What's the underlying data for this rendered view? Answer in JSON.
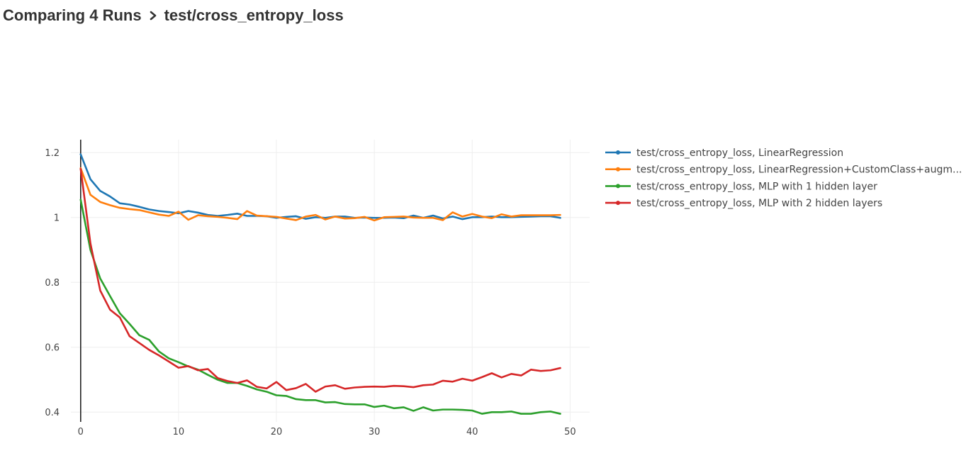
{
  "breadcrumb": {
    "parent": "Comparing 4 Runs",
    "current": "test/cross_entropy_loss"
  },
  "chart_data": {
    "type": "line",
    "title": "",
    "xlabel": "",
    "ylabel": "",
    "xlim": [
      -1,
      52
    ],
    "ylim": [
      0.37,
      1.24
    ],
    "x_ticks": [
      "0",
      "10",
      "20",
      "30",
      "40",
      "50"
    ],
    "y_ticks": [
      "0.4",
      "0.6",
      "0.8",
      "1",
      "1.2"
    ],
    "grid": true,
    "legend_position": "right",
    "x": [
      0,
      1,
      2,
      3,
      4,
      5,
      6,
      7,
      8,
      9,
      10,
      11,
      12,
      13,
      14,
      15,
      16,
      17,
      18,
      19,
      20,
      21,
      22,
      23,
      24,
      25,
      26,
      27,
      28,
      29,
      30,
      31,
      32,
      33,
      34,
      35,
      36,
      37,
      38,
      39,
      40,
      41,
      42,
      43,
      44,
      45,
      46,
      47,
      48,
      49
    ],
    "series": [
      {
        "name": "test/cross_entropy_loss, LinearRegression",
        "color": "#1f77b4",
        "values": [
          1.195,
          1.118,
          1.082,
          1.065,
          1.044,
          1.04,
          1.033,
          1.025,
          1.02,
          1.017,
          1.013,
          1.02,
          1.015,
          1.008,
          1.005,
          1.008,
          1.012,
          1.005,
          1.005,
          1.004,
          0.999,
          1.002,
          1.004,
          0.996,
          1.001,
          0.999,
          1.003,
          1.003,
          0.999,
          1.0,
          0.999,
          0.999,
          1.0,
          0.998,
          1.006,
          0.999,
          1.006,
          0.997,
          1.003,
          0.995,
          1.001,
          1.001,
          1.003,
          1.001,
          1.001,
          1.002,
          1.003,
          1.004,
          1.004,
          0.999
        ]
      },
      {
        "name": "test/cross_entropy_loss, LinearRegression+CustomClass+augm...",
        "color": "#ff7f0e",
        "values": [
          1.152,
          1.07,
          1.048,
          1.038,
          1.03,
          1.026,
          1.023,
          1.016,
          1.009,
          1.005,
          1.018,
          0.993,
          1.007,
          1.004,
          1.002,
          0.999,
          0.995,
          1.02,
          1.006,
          1.004,
          1.002,
          0.997,
          0.992,
          1.003,
          1.008,
          0.994,
          1.003,
          0.997,
          0.998,
          1.002,
          0.991,
          1.001,
          1.002,
          1.003,
          1.0,
          0.999,
          0.999,
          0.992,
          1.016,
          1.003,
          1.011,
          1.003,
          0.998,
          1.01,
          1.003,
          1.007,
          1.007,
          1.007,
          1.007,
          1.008
        ]
      },
      {
        "name": "test/cross_entropy_loss, MLP with 1 hidden layer",
        "color": "#2ca02c",
        "values": [
          1.055,
          0.9,
          0.812,
          0.758,
          0.705,
          0.672,
          0.637,
          0.623,
          0.587,
          0.566,
          0.554,
          0.541,
          0.531,
          0.515,
          0.5,
          0.49,
          0.49,
          0.481,
          0.47,
          0.463,
          0.452,
          0.45,
          0.44,
          0.437,
          0.437,
          0.43,
          0.431,
          0.425,
          0.424,
          0.424,
          0.416,
          0.42,
          0.412,
          0.415,
          0.404,
          0.415,
          0.405,
          0.408,
          0.408,
          0.407,
          0.405,
          0.395,
          0.4,
          0.4,
          0.402,
          0.395,
          0.395,
          0.4,
          0.402,
          0.395
        ]
      },
      {
        "name": "test/cross_entropy_loss, MLP with 2 hidden layers",
        "color": "#d62728",
        "values": [
          1.15,
          0.92,
          0.775,
          0.716,
          0.692,
          0.634,
          0.613,
          0.592,
          0.575,
          0.556,
          0.537,
          0.542,
          0.529,
          0.533,
          0.505,
          0.496,
          0.49,
          0.498,
          0.478,
          0.473,
          0.493,
          0.468,
          0.474,
          0.487,
          0.463,
          0.479,
          0.483,
          0.472,
          0.476,
          0.478,
          0.479,
          0.478,
          0.481,
          0.48,
          0.477,
          0.483,
          0.485,
          0.497,
          0.494,
          0.503,
          0.497,
          0.508,
          0.52,
          0.507,
          0.518,
          0.513,
          0.531,
          0.527,
          0.529,
          0.536
        ]
      }
    ]
  }
}
